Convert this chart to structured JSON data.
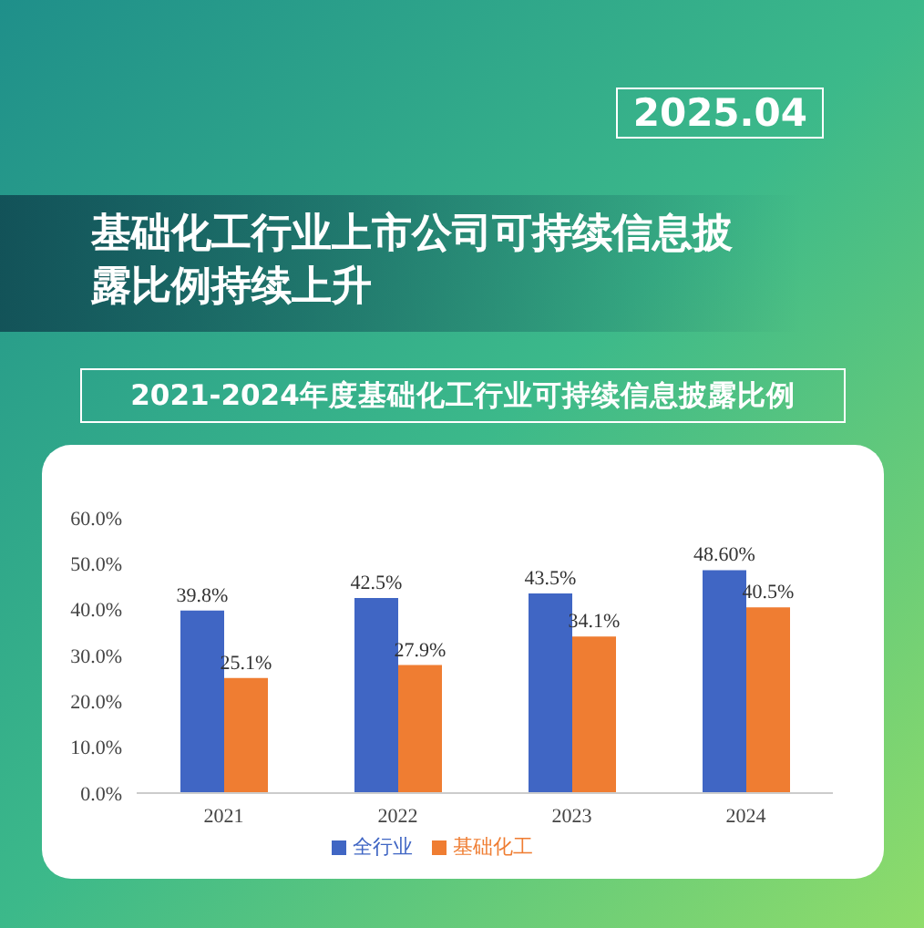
{
  "chart_data": {
    "type": "bar",
    "title": "基础化工行业上市公司可持续信息披露比例持续上升",
    "subtitle": "2021-2024年度基础化工行业可持续信息披露比例",
    "annotations": [
      "2025.04"
    ],
    "categories": [
      "2021",
      "2022",
      "2023",
      "2024"
    ],
    "series": [
      {
        "name": "全行业",
        "color": "#4066c4",
        "values": [
          39.8,
          42.5,
          43.5,
          48.6
        ],
        "value_labels": [
          "39.8%",
          "42.5%",
          "43.5%",
          "48.60%"
        ]
      },
      {
        "name": "基础化工",
        "color": "#ef7d32",
        "values": [
          25.1,
          27.9,
          34.1,
          40.5
        ],
        "value_labels": [
          "25.1%",
          "27.9%",
          "34.1%",
          "40.5%"
        ]
      }
    ],
    "ylim": [
      0,
      60
    ],
    "yticks": [
      {
        "value": 0,
        "label": "0.0%"
      },
      {
        "value": 10,
        "label": "10.0%"
      },
      {
        "value": 20,
        "label": "20.0%"
      },
      {
        "value": 30,
        "label": "30.0%"
      },
      {
        "value": 40,
        "label": "40.0%"
      },
      {
        "value": 50,
        "label": "50.0%"
      },
      {
        "value": 60,
        "label": "60.0%"
      }
    ],
    "grid": false,
    "legend": "bottom"
  }
}
